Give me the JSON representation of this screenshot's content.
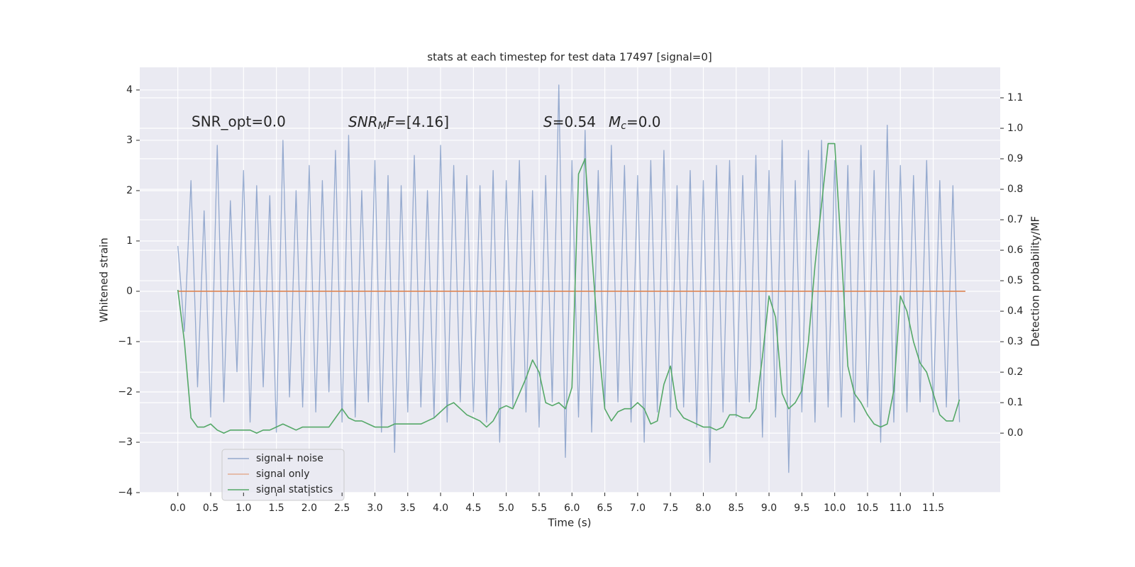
{
  "chart_data": {
    "type": "line",
    "title": "stats at each timestep for test data 17497 [signal=0]",
    "xlabel": "Time (s)",
    "ylabel": "Whitened strain",
    "y2label": "Detection probability/MF",
    "annotations": [
      [
        "SNR_opt=0.0"
      ],
      [
        "SNR",
        "M",
        "F",
        "=[4.16]"
      ],
      [
        "S",
        "=0.54"
      ],
      [
        "M",
        "c",
        "=0.0"
      ]
    ],
    "x": [
      0.0,
      0.1,
      0.2,
      0.3,
      0.4,
      0.5,
      0.6,
      0.7,
      0.8,
      0.9,
      1.0,
      1.1,
      1.2,
      1.3,
      1.4,
      1.5,
      1.6,
      1.7,
      1.8,
      1.9,
      2.0,
      2.1,
      2.2,
      2.3,
      2.4,
      2.5,
      2.6,
      2.7,
      2.8,
      2.9,
      3.0,
      3.1,
      3.2,
      3.3,
      3.4,
      3.5,
      3.6,
      3.7,
      3.8,
      3.9,
      4.0,
      4.1,
      4.2,
      4.3,
      4.4,
      4.5,
      4.6,
      4.7,
      4.8,
      4.9,
      5.0,
      5.1,
      5.2,
      5.3,
      5.4,
      5.5,
      5.6,
      5.7,
      5.8,
      5.9,
      6.0,
      6.1,
      6.2,
      6.3,
      6.4,
      6.5,
      6.6,
      6.7,
      6.8,
      6.9,
      7.0,
      7.1,
      7.2,
      7.3,
      7.4,
      7.5,
      7.6,
      7.7,
      7.8,
      7.9,
      8.0,
      8.1,
      8.2,
      8.3,
      8.4,
      8.5,
      8.6,
      8.7,
      8.8,
      8.9,
      9.0,
      9.1,
      9.2,
      9.3,
      9.4,
      9.5,
      9.6,
      9.7,
      9.8,
      9.9,
      10.0,
      10.1,
      10.2,
      10.3,
      10.4,
      10.5,
      10.6,
      10.7,
      10.8,
      10.9,
      11.0,
      11.1,
      11.2,
      11.3,
      11.4,
      11.5,
      11.6,
      11.7,
      11.8,
      11.9
    ],
    "series": [
      {
        "name": "signal+ noise",
        "color": "#4c72b0",
        "values": [
          0.9,
          -0.8,
          2.2,
          -1.9,
          1.6,
          -2.5,
          2.9,
          -2.2,
          1.8,
          -1.6,
          2.4,
          -2.6,
          2.1,
          -1.9,
          1.9,
          -2.8,
          3.0,
          -2.1,
          2.0,
          -2.3,
          2.5,
          -2.4,
          2.2,
          -2.0,
          2.8,
          -2.6,
          3.1,
          -2.5,
          2.0,
          -2.2,
          2.6,
          -2.8,
          2.3,
          -3.2,
          2.1,
          -2.4,
          2.7,
          -2.3,
          2.0,
          -2.5,
          2.9,
          -2.6,
          2.5,
          -2.2,
          2.3,
          -2.4,
          2.1,
          -2.6,
          2.4,
          -3.0,
          2.2,
          -2.3,
          2.6,
          -2.4,
          2.0,
          -2.7,
          2.3,
          -2.2,
          4.1,
          -3.3,
          2.6,
          -2.5,
          3.2,
          -2.8,
          2.4,
          -2.3,
          2.9,
          -2.2,
          2.5,
          -2.6,
          2.3,
          -3.0,
          2.6,
          -2.4,
          2.8,
          -2.5,
          2.1,
          -2.3,
          2.4,
          -2.7,
          2.2,
          -3.4,
          2.5,
          -2.4,
          2.6,
          -2.5,
          2.3,
          -2.2,
          2.7,
          -2.9,
          2.4,
          -2.5,
          3.0,
          -3.6,
          2.2,
          -2.4,
          2.8,
          -2.6,
          3.0,
          -2.3,
          2.6,
          -2.5,
          2.5,
          -2.6,
          2.9,
          -2.3,
          2.4,
          -3.0,
          3.3,
          -2.6,
          2.5,
          -2.4,
          2.3,
          -2.2,
          2.6,
          -2.4,
          2.2,
          -2.3,
          2.1,
          -2.6
        ]
      },
      {
        "name": "signal only",
        "color": "#dd8452",
        "x": [
          0.0,
          11.99
        ],
        "values": [
          0,
          0
        ]
      },
      {
        "name": "signal statistics",
        "color": "#55a868",
        "axis": "y2",
        "values": [
          0.47,
          0.3,
          0.05,
          0.02,
          0.02,
          0.03,
          0.01,
          0.0,
          0.01,
          0.01,
          0.01,
          0.01,
          0.0,
          0.01,
          0.01,
          0.02,
          0.03,
          0.02,
          0.01,
          0.02,
          0.02,
          0.02,
          0.02,
          0.02,
          0.05,
          0.08,
          0.05,
          0.04,
          0.04,
          0.03,
          0.02,
          0.02,
          0.02,
          0.03,
          0.03,
          0.03,
          0.03,
          0.03,
          0.04,
          0.05,
          0.07,
          0.09,
          0.1,
          0.08,
          0.06,
          0.05,
          0.04,
          0.02,
          0.04,
          0.08,
          0.09,
          0.08,
          0.13,
          0.18,
          0.24,
          0.2,
          0.1,
          0.09,
          0.1,
          0.08,
          0.15,
          0.85,
          0.9,
          0.6,
          0.3,
          0.08,
          0.04,
          0.07,
          0.08,
          0.08,
          0.1,
          0.08,
          0.03,
          0.04,
          0.16,
          0.22,
          0.08,
          0.05,
          0.04,
          0.03,
          0.02,
          0.02,
          0.01,
          0.02,
          0.06,
          0.06,
          0.05,
          0.05,
          0.08,
          0.25,
          0.45,
          0.38,
          0.13,
          0.08,
          0.1,
          0.14,
          0.3,
          0.55,
          0.75,
          0.95,
          0.95,
          0.6,
          0.22,
          0.13,
          0.1,
          0.06,
          0.03,
          0.02,
          0.03,
          0.14,
          0.45,
          0.4,
          0.3,
          0.23,
          0.2,
          0.13,
          0.06,
          0.04,
          0.04,
          0.11
        ]
      }
    ],
    "xlim": [
      -0.58,
      12.52
    ],
    "ylim": [
      -4.0,
      4.45
    ],
    "y2lim": [
      -0.195,
      1.2
    ],
    "xticks": [
      {
        "value": 0,
        "label": "0.0"
      },
      {
        "value": 0.5,
        "label": "0.5"
      },
      {
        "value": 1,
        "label": "1.0"
      },
      {
        "value": 1.5,
        "label": "1.5"
      },
      {
        "value": 2,
        "label": "2.0"
      },
      {
        "value": 2.5,
        "label": "2.5"
      },
      {
        "value": 3,
        "label": "3.0"
      },
      {
        "value": 3.5,
        "label": "3.5"
      },
      {
        "value": 4,
        "label": "4.0"
      },
      {
        "value": 4.5,
        "label": "4.5"
      },
      {
        "value": 5,
        "label": "5.0"
      },
      {
        "value": 5.5,
        "label": "5.5"
      },
      {
        "value": 6,
        "label": "6.0"
      },
      {
        "value": 6.5,
        "label": "6.5"
      },
      {
        "value": 7,
        "label": "7.0"
      },
      {
        "value": 7.5,
        "label": "7.5"
      },
      {
        "value": 8,
        "label": "8.0"
      },
      {
        "value": 8.5,
        "label": "8.5"
      },
      {
        "value": 9,
        "label": "9.0"
      },
      {
        "value": 9.5,
        "label": "9.5"
      },
      {
        "value": 10,
        "label": "10.0"
      },
      {
        "value": 10.5,
        "label": "10.5"
      },
      {
        "value": 11,
        "label": "11.0"
      },
      {
        "value": 11.5,
        "label": "11.5"
      }
    ],
    "yticks": [
      {
        "value": -4,
        "label": "−4"
      },
      {
        "value": -3,
        "label": "−3"
      },
      {
        "value": -2,
        "label": "−2"
      },
      {
        "value": -1,
        "label": "−1"
      },
      0,
      1,
      2,
      3,
      4
    ],
    "y2ticks": [
      {
        "value": 0,
        "label": "0.0"
      },
      {
        "value": 0.1,
        "label": "0.1"
      },
      {
        "value": 0.2,
        "label": "0.2"
      },
      {
        "value": 0.3,
        "label": "0.3"
      },
      {
        "value": 0.4,
        "label": "0.4"
      },
      {
        "value": 0.5,
        "label": "0.5"
      },
      {
        "value": 0.6,
        "label": "0.6"
      },
      {
        "value": 0.7,
        "label": "0.7"
      },
      {
        "value": 0.8,
        "label": "0.8"
      },
      {
        "value": 0.9,
        "label": "0.9"
      },
      {
        "value": 1,
        "label": "1.0"
      },
      {
        "value": 1.1,
        "label": "1.1"
      }
    ],
    "grid": true,
    "legend": "lower left",
    "background": "#eaeaf2"
  }
}
